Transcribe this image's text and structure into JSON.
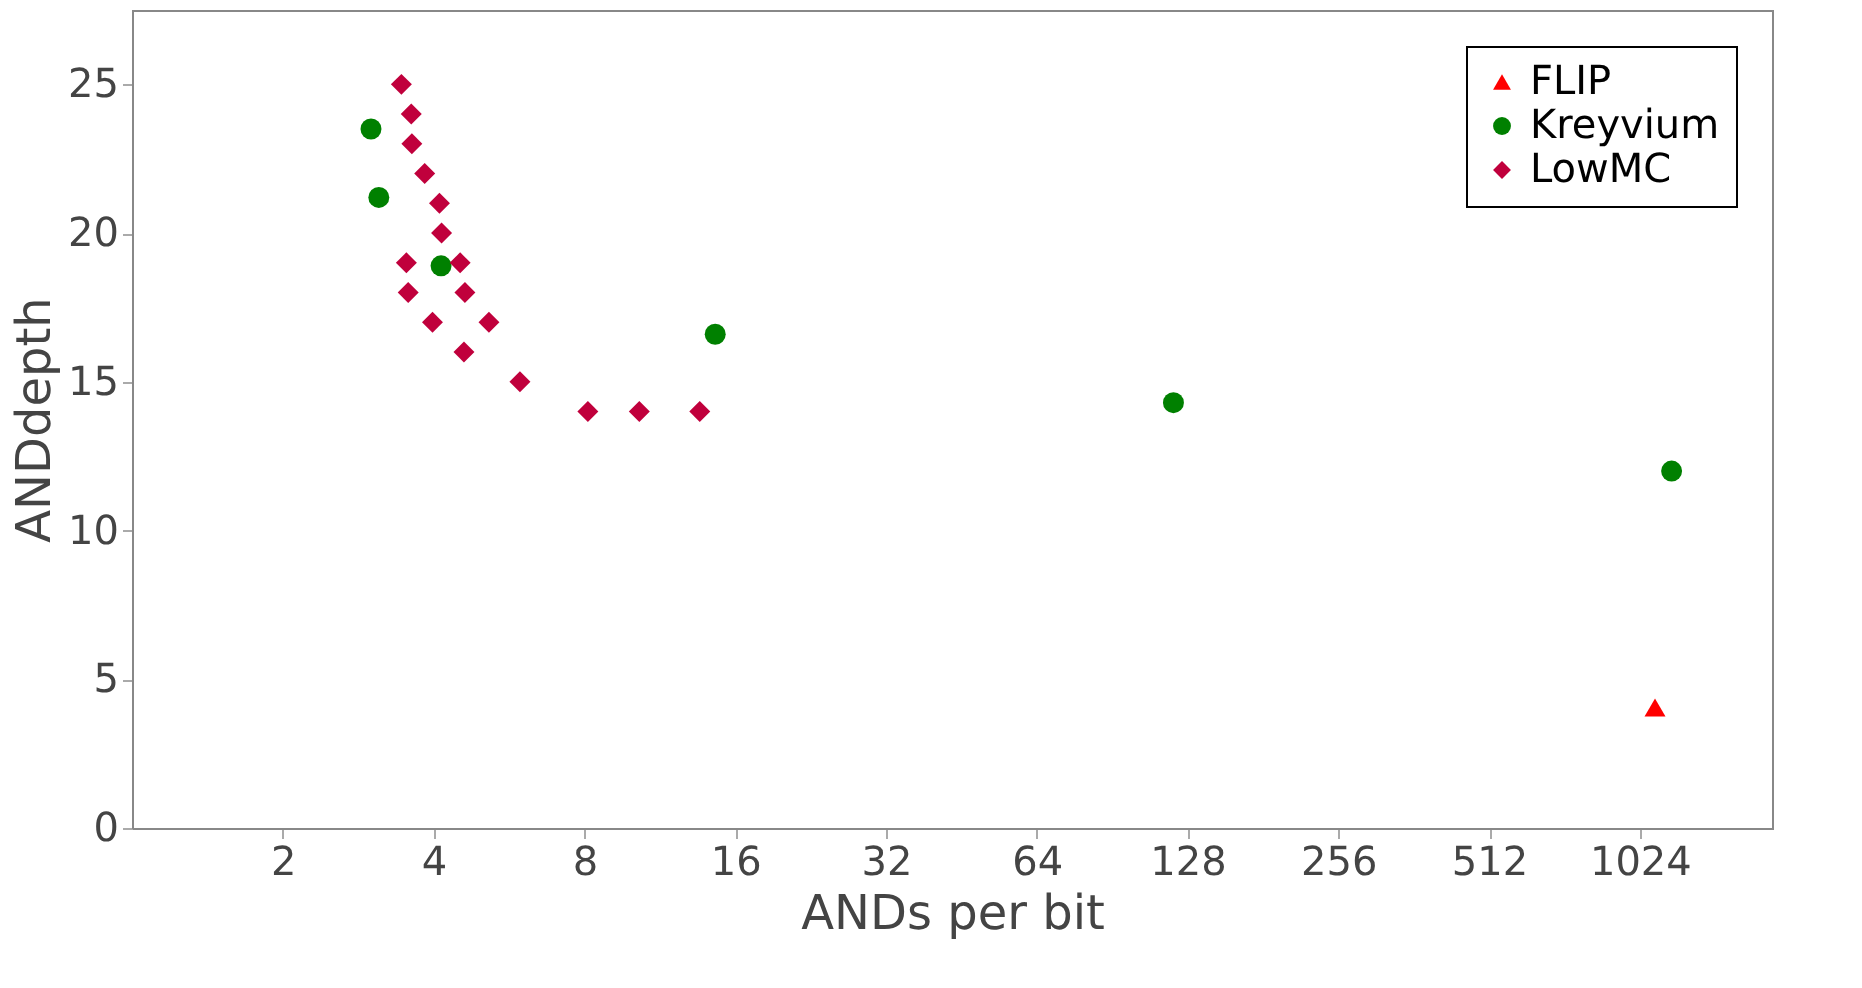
{
  "chart_data": {
    "type": "scatter",
    "xlabel": "ANDs per bit",
    "ylabel": "ANDdepth",
    "log": "x",
    "xlim": [
      1,
      1880
    ],
    "xticks": [
      2,
      4,
      8,
      16,
      32,
      64,
      128,
      256,
      512,
      1024
    ],
    "ylim": [
      0,
      27.5
    ],
    "yticks": [
      0,
      5,
      10,
      15,
      20,
      25
    ],
    "grid": false,
    "legend": "top right",
    "series": [
      {
        "name": "FLIP",
        "color": "#ff0000",
        "marker": "triangle",
        "x": [
          1098
        ],
        "values": [
          4.05
        ]
      },
      {
        "name": "Kreyvium",
        "color": "#008000",
        "marker": "circle",
        "x": [
          3.0,
          3.11,
          4.14,
          14.6,
          120,
          1185
        ],
        "values": [
          23.5,
          21.2,
          18.9,
          16.6,
          14.3,
          12.0
        ]
      },
      {
        "name": "LowMC",
        "color": "#c0003c",
        "marker": "diamond",
        "x": [
          3.45,
          3.61,
          3.62,
          3.84,
          4.11,
          4.15,
          3.53,
          4.52,
          3.56,
          4.62,
          3.98,
          5.16,
          4.6,
          5.95,
          8.13,
          10.3,
          13.6
        ],
        "values": [
          25,
          24,
          23,
          22,
          21,
          20,
          19,
          19,
          18,
          18,
          17,
          17,
          16,
          15,
          14,
          14,
          14
        ]
      }
    ]
  }
}
